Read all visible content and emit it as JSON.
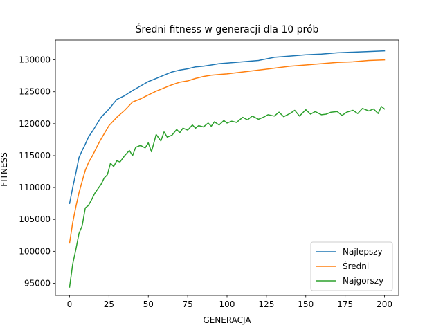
{
  "chart_data": {
    "type": "line",
    "title": "Średni fitness w generacji dla 10 prób",
    "xlabel": "GENERACJA",
    "ylabel": "FITNESS",
    "xlim": [
      -9,
      209
    ],
    "ylim": [
      93100,
      133100
    ],
    "xticks": [
      0,
      25,
      50,
      75,
      100,
      125,
      150,
      175,
      200
    ],
    "yticks": [
      95000,
      100000,
      105000,
      110000,
      115000,
      120000,
      125000,
      130000
    ],
    "grid": false,
    "legend": "lower-right",
    "series": [
      {
        "name": "Najlepszy",
        "color": "#1f77b4",
        "x": [
          0,
          2,
          4,
          6,
          8,
          10,
          12,
          15,
          18,
          20,
          25,
          30,
          35,
          40,
          45,
          50,
          55,
          60,
          65,
          70,
          75,
          80,
          85,
          90,
          95,
          100,
          110,
          120,
          130,
          140,
          150,
          160,
          170,
          180,
          190,
          200
        ],
        "values": [
          107500,
          110000,
          112300,
          114700,
          115800,
          116800,
          117900,
          119000,
          120200,
          121000,
          122300,
          123800,
          124400,
          125200,
          125900,
          126600,
          127100,
          127600,
          128100,
          128400,
          128600,
          128900,
          129000,
          129200,
          129400,
          129500,
          129700,
          129900,
          130400,
          130600,
          130800,
          130900,
          131100,
          131200,
          131300,
          131400
        ]
      },
      {
        "name": "Średni",
        "color": "#ff7f0e",
        "x": [
          0,
          2,
          4,
          6,
          8,
          10,
          12,
          15,
          18,
          20,
          25,
          30,
          35,
          40,
          45,
          50,
          55,
          60,
          65,
          70,
          75,
          80,
          85,
          90,
          95,
          100,
          110,
          120,
          130,
          140,
          150,
          160,
          170,
          180,
          190,
          200
        ],
        "values": [
          101300,
          104500,
          107000,
          109200,
          111000,
          112700,
          113900,
          115200,
          116700,
          117600,
          119700,
          121000,
          122100,
          123400,
          123900,
          124500,
          125100,
          125600,
          126100,
          126500,
          126700,
          127100,
          127400,
          127600,
          127700,
          127800,
          128100,
          128400,
          128700,
          129000,
          129200,
          129400,
          129600,
          129700,
          129900,
          130000
        ]
      },
      {
        "name": "Najgorszy",
        "color": "#2ca02c",
        "x": [
          0,
          2,
          4,
          6,
          8,
          10,
          12,
          14,
          16,
          18,
          20,
          22,
          24,
          26,
          28,
          30,
          32,
          35,
          38,
          40,
          42,
          45,
          48,
          50,
          52,
          55,
          58,
          60,
          62,
          65,
          68,
          70,
          72,
          75,
          78,
          80,
          82,
          85,
          88,
          90,
          92,
          95,
          98,
          100,
          103,
          106,
          110,
          113,
          116,
          120,
          123,
          126,
          130,
          133,
          136,
          140,
          143,
          146,
          150,
          153,
          156,
          160,
          163,
          166,
          170,
          173,
          176,
          180,
          183,
          186,
          190,
          193,
          196,
          198,
          200
        ],
        "values": [
          94400,
          98000,
          100300,
          102800,
          104000,
          106800,
          107200,
          108100,
          109100,
          109800,
          110500,
          111500,
          112000,
          113800,
          113300,
          114200,
          114000,
          115000,
          115800,
          115000,
          116300,
          116600,
          116200,
          117000,
          115600,
          118300,
          117300,
          118700,
          117900,
          118200,
          119100,
          118600,
          119300,
          119000,
          119800,
          119300,
          119700,
          119500,
          120100,
          119600,
          120300,
          119800,
          120500,
          120100,
          120400,
          120200,
          121000,
          120600,
          121200,
          120700,
          121000,
          121400,
          121200,
          121800,
          121100,
          121600,
          122100,
          121200,
          122200,
          121500,
          121900,
          121400,
          121500,
          121800,
          121900,
          121300,
          121800,
          122100,
          121600,
          122400,
          122000,
          122300,
          121600,
          122700,
          122300
        ]
      }
    ]
  }
}
